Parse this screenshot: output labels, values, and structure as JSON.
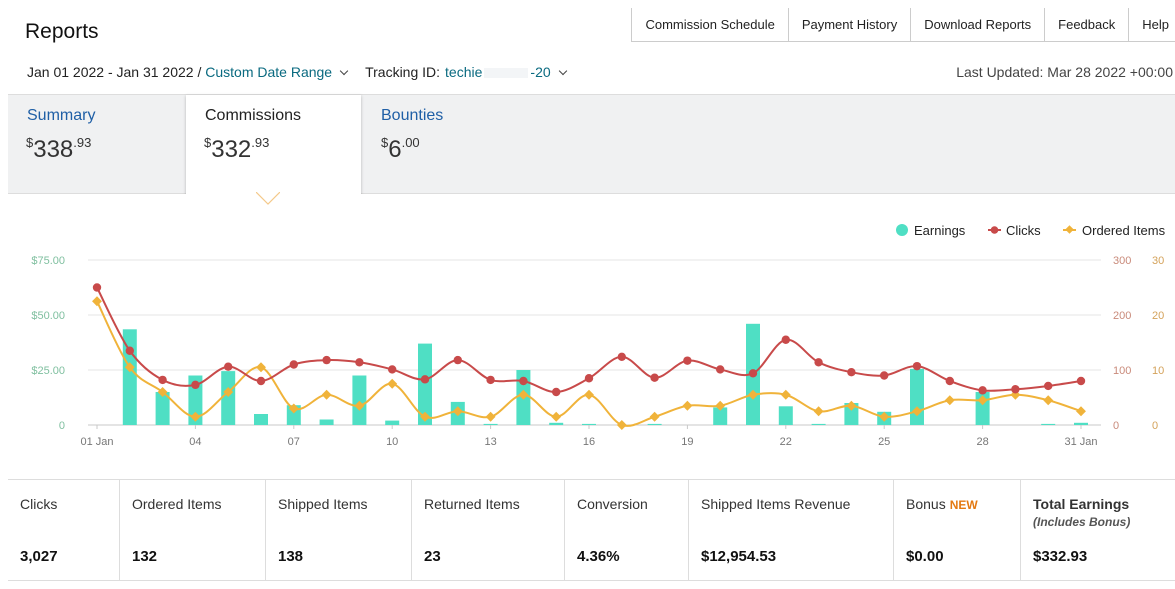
{
  "header": {
    "title": "Reports",
    "tabs": [
      "Commission Schedule",
      "Payment History",
      "Download Reports",
      "Feedback",
      "Help"
    ],
    "date_range": "Jan 01 2022 - Jan 31 2022 /",
    "date_range_link": "Custom Date Range",
    "tracking_label": "Tracking ID:",
    "tracking_id_start": "techie",
    "tracking_id_end": "-20",
    "last_updated": "Last Updated: Mar 28 2022 +00:00"
  },
  "summary": {
    "summary_label": "Summary",
    "summary_dollar": "$",
    "summary_whole": "338",
    "summary_cents": ".93",
    "commissions_label": "Commissions",
    "commissions_dollar": "$",
    "commissions_whole": "332",
    "commissions_cents": ".93",
    "bounties_label": "Bounties",
    "bounties_dollar": "$",
    "bounties_whole": "6",
    "bounties_cents": ".00"
  },
  "chart_data": {
    "type": "bar",
    "legend": [
      "Earnings",
      "Clicks",
      "Ordered Items"
    ],
    "legend_position": "top-right",
    "colors": {
      "Earnings": "#4fdfc4",
      "Clicks": "#c84a4a",
      "Ordered Items": "#f0b33a"
    },
    "x_ticks": [
      "01 Jan",
      "04",
      "07",
      "10",
      "13",
      "16",
      "19",
      "22",
      "25",
      "28",
      "31 Jan"
    ],
    "x_tick_days": [
      1,
      4,
      7,
      10,
      13,
      16,
      19,
      22,
      25,
      28,
      31
    ],
    "y_left_ticks": [
      "$75.00",
      "$50.00",
      "$25.00",
      "0"
    ],
    "y_left_lim": [
      0,
      75
    ],
    "y_clicks_ticks": [
      "300",
      "200",
      "100",
      "0"
    ],
    "y_clicks_lim": [
      0,
      300
    ],
    "y_items_ticks": [
      "30",
      "20",
      "10",
      "0"
    ],
    "y_items_lim": [
      0,
      30
    ],
    "grid": true,
    "days": [
      1,
      2,
      3,
      4,
      5,
      6,
      7,
      8,
      9,
      10,
      11,
      12,
      13,
      14,
      15,
      16,
      17,
      18,
      19,
      20,
      21,
      22,
      23,
      24,
      25,
      26,
      27,
      28,
      29,
      30,
      31
    ],
    "series": [
      {
        "name": "Earnings",
        "kind": "bar",
        "axis": "left",
        "values": [
          0,
          43.5,
          15,
          22.5,
          24.5,
          5,
          9,
          2.5,
          22.5,
          2,
          37,
          10.5,
          0.5,
          25,
          1,
          0.5,
          0,
          0.5,
          0,
          8,
          46,
          8.5,
          0.5,
          10,
          6,
          25.5,
          0,
          15,
          0,
          0.5,
          1
        ]
      },
      {
        "name": "Clicks",
        "kind": "line",
        "axis": "right1",
        "values": [
          250,
          135,
          82,
          73,
          106,
          80,
          110,
          118,
          114,
          101,
          83,
          118,
          82,
          80,
          60,
          85,
          124,
          86,
          117,
          101,
          94,
          155,
          114,
          96,
          90,
          107,
          80,
          63,
          65,
          71,
          80
        ]
      },
      {
        "name": "Ordered Items",
        "kind": "line",
        "axis": "right2",
        "values": [
          22.5,
          10.5,
          6,
          1.5,
          6,
          10.5,
          3,
          5.5,
          3.5,
          7.5,
          1.5,
          2.5,
          1.5,
          5.5,
          1.5,
          5.5,
          0,
          1.5,
          3.5,
          3.5,
          5.5,
          5.5,
          2.5,
          3.5,
          1.5,
          2.5,
          4.5,
          4.5,
          5.5,
          4.5,
          2.5
        ]
      }
    ]
  },
  "stats": [
    {
      "label": "Clicks",
      "value": "3,027"
    },
    {
      "label": "Ordered Items",
      "value": "132"
    },
    {
      "label": "Shipped Items",
      "value": "138"
    },
    {
      "label": "Returned Items",
      "value": "23"
    },
    {
      "label": "Conversion",
      "value": "4.36%"
    },
    {
      "label": "Shipped Items Revenue",
      "value": "$12,954.53"
    },
    {
      "label": "Bonus",
      "badge": "NEW",
      "value": "$0.00"
    },
    {
      "label": "Total Earnings",
      "note": "(Includes Bonus)",
      "value": "$332.93"
    }
  ]
}
